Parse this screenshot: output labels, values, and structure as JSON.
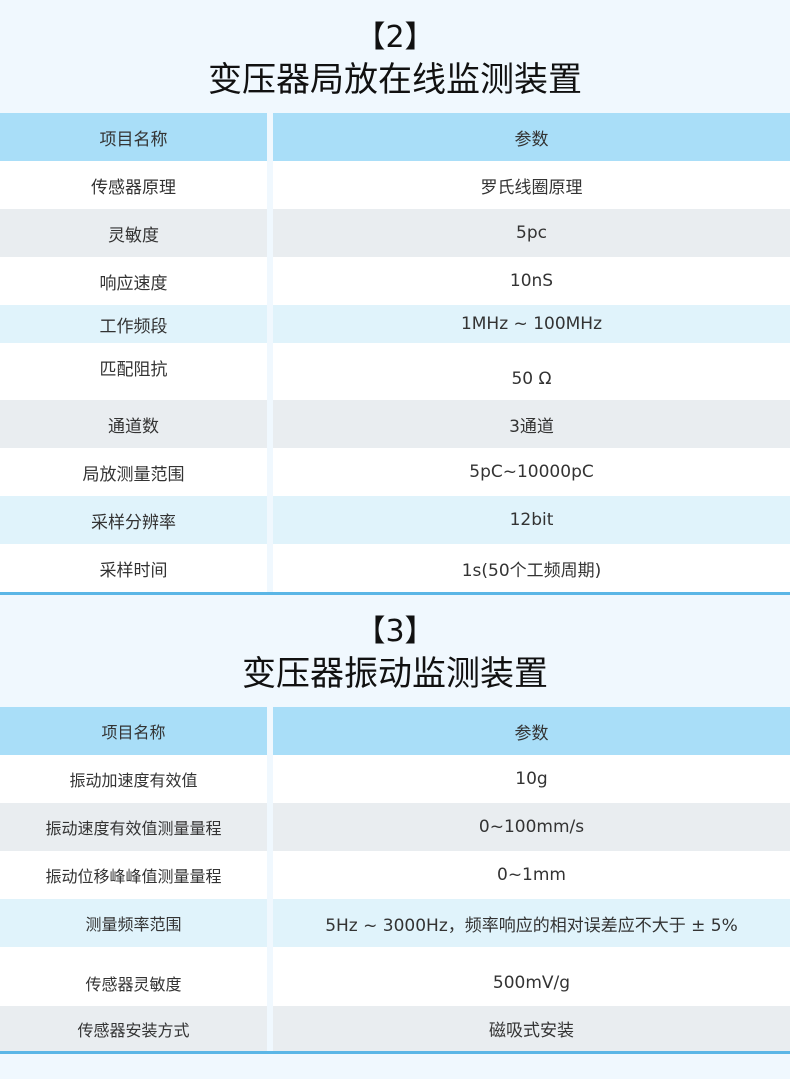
{
  "section2": {
    "number": "【2】",
    "title": "变压器局放在线监测装置",
    "header": [
      "项目名称",
      "参数"
    ],
    "rows": [
      {
        "name": "传感器原理",
        "value": "罗氏线圈原理",
        "shade": "white"
      },
      {
        "name": "灵敏度",
        "value": "5pc",
        "shade": "gray"
      },
      {
        "name": "响应速度",
        "value": "10nS",
        "shade": "white"
      },
      {
        "name": "工作频段",
        "value": "1MHz ~ 100MHz",
        "shade": "blue"
      },
      {
        "name": "匹配阻抗",
        "value": "50 Ω",
        "shade": "white"
      },
      {
        "name": "通道数",
        "value": "3通道",
        "shade": "gray"
      },
      {
        "name": "局放测量范围",
        "value": "5pC~10000pC",
        "shade": "white"
      },
      {
        "name": "采样分辨率",
        "value": "12bit",
        "shade": "blue"
      },
      {
        "name": "采样时间",
        "value": "1s(50个工频周期)",
        "shade": "white"
      }
    ]
  },
  "section3": {
    "number": "【3】",
    "title": "变压器振动监测装置",
    "header": [
      "项目名称",
      "参数"
    ],
    "rows": [
      {
        "name": "振动加速度有效值",
        "value": "10g",
        "shade": "white"
      },
      {
        "name": "振动速度有效值测量量程",
        "value": "0~100mm/s",
        "shade": "gray"
      },
      {
        "name": "振动位移峰峰值测量量程",
        "value": "0~1mm",
        "shade": "white"
      },
      {
        "name": "测量频率范围",
        "value": "5Hz ~ 3000Hz，频率响应的相对误差应不大于 ± 5%",
        "shade": "blue"
      },
      {
        "name": "传感器灵敏度",
        "value": "500mV/g",
        "shade": "white"
      },
      {
        "name": "传感器安装方式",
        "value": "磁吸式安装",
        "shade": "gray"
      }
    ]
  },
  "colors": {
    "background": "#f0f8fe",
    "header": "#a9def8",
    "gray_row": "#e9edf0",
    "blue_row": "#e0f3fb",
    "divider": "#5bb6e6"
  }
}
